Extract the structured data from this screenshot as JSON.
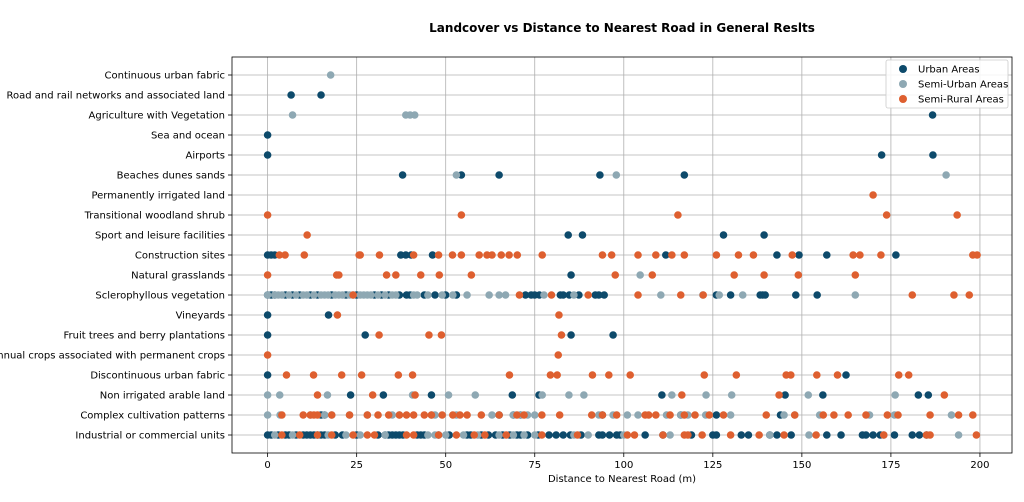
{
  "chart_data": {
    "type": "scatter",
    "title": "Landcover vs Distance to Nearest Road in General Reslts",
    "xlabel": "Distance to Nearest Road (m)",
    "ylabel": "",
    "xlim": [
      -10,
      209
    ],
    "xticks": [
      0,
      25,
      50,
      75,
      100,
      125,
      150,
      175,
      200
    ],
    "grid": true,
    "legend_position": "top-right",
    "categories": [
      "Continuous urban fabric",
      "Road and rail networks and associated land",
      "Agriculture with Vegetation",
      "Sea and ocean",
      "Airports",
      "Beaches dunes sands",
      "Permanently irrigated land",
      "Transitional woodland shrub",
      "Sport and leisure facilities",
      "Construction sites",
      "Natural grasslands",
      "Sclerophyllous vegetation",
      "Vineyards",
      "Fruit trees and berry plantations",
      "Annual crops associated with permanent crops",
      "Discontinuous urban fabric",
      "Non irrigated arable land",
      "Complex cultivation patterns",
      "Industrial or commercial units"
    ],
    "series": [
      {
        "name": "Urban Areas",
        "color": "#0d4a6b",
        "x_by_category": [
          [],
          [
            6.6,
            15
          ],
          [
            186.7
          ],
          [
            0
          ],
          [
            0,
            172.4,
            186.8
          ],
          [
            37.9,
            54.4,
            65,
            93.3,
            117
          ],
          [],
          [],
          [
            84.4,
            88.4,
            128,
            139.4
          ],
          [
            0,
            1,
            2,
            37.4,
            38.8,
            40.3,
            46.3,
            111.8,
            143,
            149.2,
            157,
            176.4
          ],
          [
            85.2
          ],
          [
            0,
            1,
            2,
            5,
            7,
            9,
            12,
            14,
            18,
            22,
            25,
            30,
            32,
            34,
            37,
            39,
            40,
            44,
            47,
            50,
            53,
            72.4,
            74,
            75,
            76.3,
            82.2,
            83,
            84.7,
            87.4,
            92,
            93,
            94.5,
            126,
            130,
            138.3,
            139,
            139.7,
            148.3,
            154.3
          ],
          [
            0,
            17.1
          ],
          [
            0,
            27.4,
            85.2,
            97
          ],
          [],
          [
            0,
            162.4
          ],
          [
            23.3,
            32.5,
            46,
            68.7,
            76.2,
            110.7,
            145.3,
            155.9,
            182.7,
            185.5
          ],
          [
            15,
            16,
            65,
            69,
            71,
            94,
            116,
            126,
            144
          ],
          [
            0,
            1,
            3,
            5,
            6,
            8,
            10,
            11,
            12,
            13,
            14,
            15,
            16,
            19,
            21,
            25,
            31,
            33,
            34,
            35,
            36,
            37,
            38,
            42,
            43,
            44,
            48,
            51,
            56,
            57,
            60,
            62,
            64,
            66,
            68,
            70,
            71,
            73,
            76,
            79,
            81,
            83,
            85,
            88,
            93,
            94,
            96,
            98,
            99,
            106,
            111,
            119,
            125,
            126,
            133,
            135,
            141,
            143,
            147,
            157,
            161,
            167,
            168,
            170,
            172,
            176,
            181,
            183,
            185
          ]
        ]
      },
      {
        "name": "Semi-Urban Areas",
        "color": "#8ea8b3",
        "x_by_category": [
          [
            17.7
          ],
          [],
          [
            7,
            38.8,
            40,
            41.3
          ],
          [],
          [],
          [
            53,
            97.9,
            190.5
          ],
          [],
          [],
          [],
          [],
          [
            104.6
          ],
          [
            0,
            2,
            3,
            4,
            6,
            8,
            10,
            11,
            13,
            15,
            16,
            17,
            19,
            20,
            21,
            23,
            24,
            26,
            27,
            28,
            29,
            31,
            33,
            35,
            36,
            41,
            42,
            45,
            49,
            52,
            56,
            62.2,
            65,
            66.8,
            77.6,
            86,
            110.4,
            122.2,
            126.8,
            133.4,
            165
          ],
          [],
          [],
          [],
          [],
          [
            0,
            3.4,
            16.8,
            40.7,
            50.8,
            58.3,
            77.1,
            84.6,
            88.8,
            113.5,
            123.1,
            130.3,
            151.8,
            176.2
          ],
          [
            0,
            3.5,
            12,
            16,
            18,
            23,
            28,
            35,
            37,
            46,
            47,
            53,
            63,
            69,
            71,
            73,
            75,
            93,
            97,
            101,
            104,
            112,
            116,
            118,
            123,
            130,
            145,
            148,
            155,
            169,
            176,
            192
          ],
          [
            2,
            7,
            17,
            22,
            26,
            33,
            45,
            47,
            50,
            55,
            59,
            65,
            69,
            72,
            75,
            86,
            90,
            100,
            113,
            141,
            152,
            173,
            194
          ]
        ]
      },
      {
        "name": "Semi-Rural Areas",
        "color": "#de5f2f",
        "x_by_category": [
          [],
          [],
          [],
          [],
          [],
          [],
          [
            170
          ],
          [
            0,
            54.4,
            115.2,
            173.8,
            193.6
          ],
          [
            11.1
          ],
          [
            3.3,
            4.9,
            10.3,
            25.7,
            26,
            31.4,
            41,
            48,
            51.9,
            54.4,
            59.4,
            61.6,
            63,
            65.6,
            67.8,
            70.1,
            77.1,
            94,
            96.6,
            104,
            109,
            113.5,
            117,
            126,
            132.2,
            136.4,
            147.3,
            164.4,
            166.3,
            172.2,
            198,
            199.2
          ],
          [
            0,
            19.4,
            20,
            33.4,
            36,
            43,
            48.2,
            57.2,
            97.6,
            108,
            131,
            139.4,
            149,
            165
          ],
          [
            24,
            70.7,
            79.7,
            90,
            104,
            116,
            122.3,
            181,
            192.7,
            197
          ],
          [
            19.6,
            81.8
          ],
          [
            31.3,
            45.3,
            48.8,
            82.5
          ],
          [
            0,
            81.6
          ],
          [
            5.3,
            12.9,
            20.8,
            26.4,
            36.7,
            40.7,
            67.9,
            79.4,
            81.3,
            91.2,
            95.8,
            101.8,
            122.6,
            131.6,
            145.6,
            146.9,
            154.2,
            160,
            177.2,
            180
          ],
          [
            14,
            29.5,
            41.4,
            116.3,
            143.6,
            190
          ],
          [
            4,
            10,
            12,
            13,
            14,
            18,
            23,
            28,
            31,
            34,
            37,
            39,
            41,
            44,
            46,
            49,
            52,
            54,
            56,
            60,
            65,
            70,
            72,
            77,
            82,
            91,
            94,
            98,
            106,
            107,
            109,
            113,
            117,
            120,
            124,
            128,
            140,
            148,
            156,
            159,
            163,
            168,
            174,
            177,
            186,
            194,
            198
          ],
          [
            4,
            9,
            14,
            18,
            24,
            28,
            30,
            39,
            41,
            48,
            53,
            58,
            61,
            67,
            77,
            87,
            101,
            103,
            111,
            117,
            118,
            122,
            130,
            138,
            145,
            154,
            173,
            185,
            186,
            199
          ]
        ]
      }
    ]
  }
}
